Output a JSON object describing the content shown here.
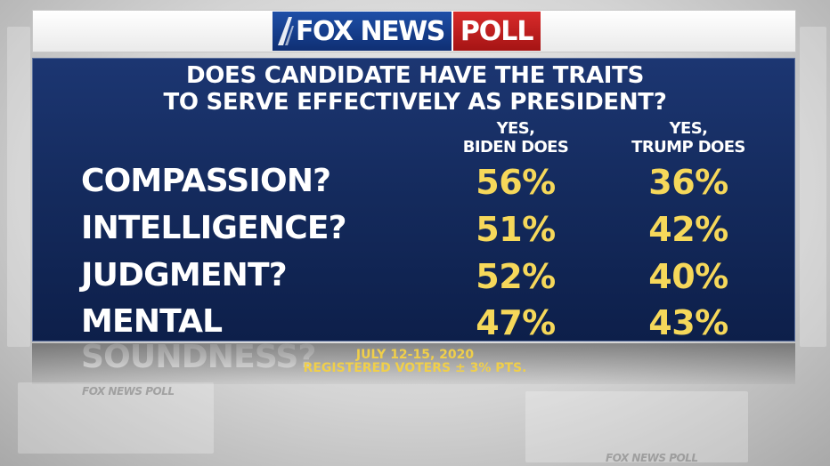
{
  "brand": {
    "fox_news": "FOX NEWS",
    "poll": "POLL",
    "color_blue": "#1e4fa8",
    "color_red": "#c41e1e"
  },
  "question": {
    "line1": "DOES CANDIDATE HAVE THE TRAITS",
    "line2": "TO SERVE EFFECTIVELY AS PRESIDENT?"
  },
  "chart_data": {
    "type": "table",
    "columns": [
      {
        "line1": "YES,",
        "line2": "BIDEN DOES"
      },
      {
        "line1": "YES,",
        "line2": "TRUMP DOES"
      }
    ],
    "rows": [
      {
        "label": "COMPASSION?",
        "biden": "56%",
        "trump": "36%"
      },
      {
        "label": "INTELLIGENCE?",
        "biden": "51%",
        "trump": "42%"
      },
      {
        "label": "JUDGMENT?",
        "biden": "52%",
        "trump": "40%"
      },
      {
        "label": "MENTAL SOUNDNESS?",
        "biden": "47%",
        "trump": "43%"
      }
    ],
    "value_color": "#f6d85a"
  },
  "footer": {
    "date": "JULY 12-15, 2020",
    "sample": "REGISTERED VOTERS ± 3% PTS."
  },
  "background": {
    "watermark": "FOX NEWS POLL"
  }
}
